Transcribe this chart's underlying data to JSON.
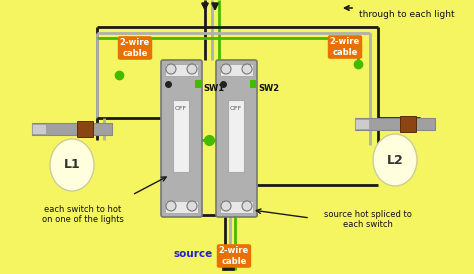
{
  "bg_color": "#f5f562",
  "fig_width": 4.74,
  "fig_height": 2.74,
  "dpi": 100,
  "label_each_switch": "each switch to hot\non one of the lights",
  "label_source_hot": "source hot spliced to\neach switch",
  "label_source": "source",
  "label_through": "through to each light",
  "label_L1": "L1",
  "label_L2": "L2",
  "label_SW1": "SW1",
  "label_SW2": "SW2",
  "label_cable1": "2-wire\ncable",
  "label_cable2": "2-wire\ncable",
  "label_cable3": "2-wire\ncable",
  "label_off": "OFF",
  "wire_black": "#1a1a1a",
  "wire_white": "#b0b0b0",
  "wire_green": "#44bb00",
  "orange_bg": "#e87000",
  "blue_text": "#2222cc",
  "sw_body": "#b0b0b0",
  "sw_edge": "#777777",
  "sw_slot": "#f0f0f0",
  "fixture_bar": "#a0a0a0",
  "fixture_brown": "#8B4513",
  "bulb_fill": "#ffffdd",
  "screw_fill": "#dddddd",
  "green_ind": "#44bb00"
}
